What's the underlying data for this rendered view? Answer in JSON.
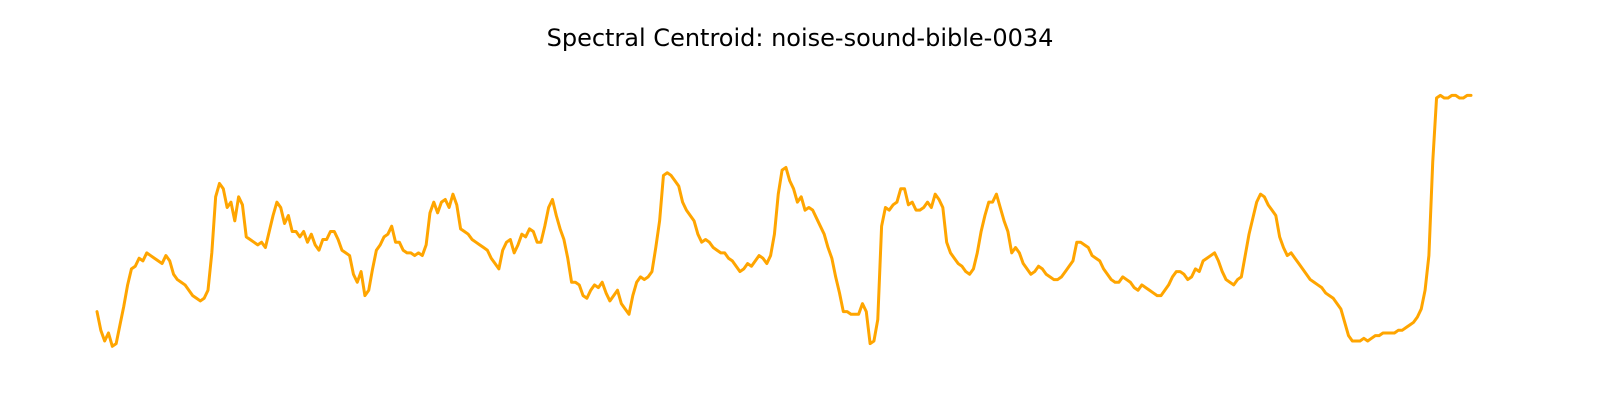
{
  "chart_data": {
    "type": "line",
    "title": "Spectral Centroid: noise-sound-bible-0034",
    "xlabel": "",
    "ylabel": "",
    "axes_visible": false,
    "grid": false,
    "legend": "none",
    "ylim": [
      0,
      100
    ],
    "series": [
      {
        "color": "#FFA500",
        "values": [
          14,
          7,
          3,
          6,
          1,
          2,
          9,
          16,
          24,
          30,
          31,
          34,
          33,
          36,
          35,
          34,
          33,
          32,
          35,
          33,
          28,
          26,
          25,
          24,
          22,
          20,
          19,
          18,
          19,
          22,
          36,
          57,
          62,
          60,
          53,
          55,
          48,
          57,
          54,
          42,
          41,
          40,
          39,
          40,
          38,
          44,
          50,
          55,
          53,
          47,
          50,
          44,
          44,
          42,
          44,
          40,
          43,
          39,
          37,
          41,
          41,
          44,
          44,
          41,
          37,
          36,
          35,
          28,
          25,
          29,
          20,
          22,
          30,
          37,
          39,
          42,
          43,
          46,
          40,
          40,
          37,
          36,
          36,
          35,
          36,
          35,
          39,
          51,
          55,
          51,
          55,
          56,
          53,
          58,
          54,
          45,
          44,
          43,
          41,
          40,
          39,
          38,
          37,
          34,
          32,
          30,
          37,
          40,
          41,
          36,
          39,
          43,
          42,
          45,
          44,
          40,
          40,
          46,
          53,
          56,
          50,
          45,
          41,
          34,
          25,
          25,
          24,
          20,
          19,
          22,
          24,
          23,
          25,
          21,
          18,
          20,
          22,
          17,
          15,
          13,
          20,
          25,
          27,
          26,
          27,
          29,
          38,
          48,
          65,
          66,
          65,
          63,
          61,
          55,
          52,
          50,
          48,
          43,
          40,
          41,
          40,
          38,
          37,
          36,
          36,
          34,
          33,
          31,
          29,
          30,
          32,
          31,
          33,
          35,
          34,
          32,
          35,
          43,
          58,
          67,
          68,
          63,
          60,
          55,
          57,
          52,
          53,
          52,
          49,
          46,
          43,
          38,
          34,
          27,
          21,
          14,
          14,
          13,
          13,
          13,
          17,
          14,
          2,
          3,
          11,
          46,
          53,
          52,
          54,
          55,
          60,
          60,
          54,
          55,
          52,
          52,
          53,
          55,
          53,
          58,
          56,
          53,
          40,
          36,
          34,
          32,
          31,
          29,
          28,
          30,
          36,
          44,
          50,
          55,
          55,
          58,
          53,
          48,
          44,
          36,
          38,
          36,
          32,
          30,
          28,
          29,
          31,
          30,
          28,
          27,
          26,
          26,
          27,
          29,
          31,
          33,
          40,
          40,
          39,
          38,
          35,
          34,
          33,
          30,
          28,
          26,
          25,
          25,
          27,
          26,
          25,
          23,
          22,
          24,
          23,
          22,
          21,
          20,
          20,
          22,
          24,
          27,
          29,
          29,
          28,
          26,
          27,
          30,
          29,
          33,
          34,
          35,
          36,
          33,
          29,
          26,
          25,
          24,
          26,
          27,
          35,
          43,
          49,
          55,
          58,
          57,
          54,
          52,
          50,
          42,
          38,
          35,
          36,
          34,
          32,
          30,
          28,
          26,
          25,
          24,
          23,
          21,
          20,
          19,
          17,
          15,
          10,
          5,
          3,
          3,
          3,
          4,
          3,
          4,
          5,
          5,
          6,
          6,
          6,
          6,
          7,
          7,
          8,
          9,
          10,
          12,
          15,
          22,
          35,
          70,
          94,
          95,
          94,
          94,
          95,
          95,
          94,
          94,
          95,
          95
        ]
      }
    ]
  }
}
